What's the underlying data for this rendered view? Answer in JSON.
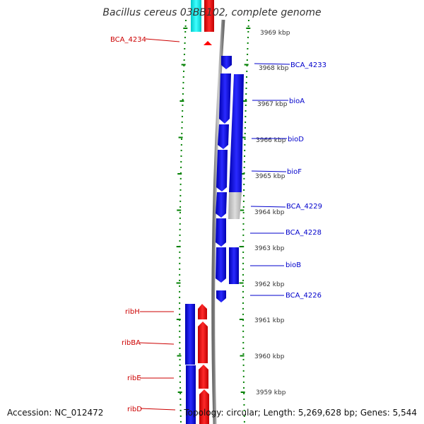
{
  "title": "Bacillus cereus 03BB102, complete genome",
  "footer": {
    "accession": "Accession: NC_012472",
    "summary": "Topology: circular; Length: 5,269,628 bp; Genes: 5,544"
  },
  "scale": {
    "unit": "kbp",
    "ticks": [
      {
        "label": "3969 kbp"
      },
      {
        "label": "3968 kbp"
      },
      {
        "label": "3967 kbp"
      },
      {
        "label": "3966 kbp"
      },
      {
        "label": "3965 kbp"
      },
      {
        "label": "3964 kbp"
      },
      {
        "label": "3963 kbp"
      },
      {
        "label": "3962 kbp"
      },
      {
        "label": "3961 kbp"
      },
      {
        "label": "3960 kbp"
      },
      {
        "label": "3959 kbp"
      }
    ]
  },
  "colors": {
    "forward": "#ff0000",
    "reverse": "#0000ff",
    "cds_forward_outer": "#00e5e5",
    "pseudo": "#c0c0c0",
    "backbone": "#888888",
    "tick_outer": "#008000"
  },
  "labels": {
    "left": [
      {
        "name": "BCA_4234",
        "color": "#cc0000"
      },
      {
        "name": "ribH",
        "color": "#cc0000"
      },
      {
        "name": "ribBA",
        "color": "#cc0000"
      },
      {
        "name": "ribE",
        "color": "#cc0000"
      },
      {
        "name": "ribD",
        "color": "#cc0000"
      }
    ],
    "right": [
      {
        "name": "BCA_4233",
        "color": "#0000cc"
      },
      {
        "name": "bioA",
        "color": "#0000cc"
      },
      {
        "name": "bioD",
        "color": "#0000cc"
      },
      {
        "name": "bioF",
        "color": "#0000cc"
      },
      {
        "name": "BCA_4229",
        "color": "#0000cc"
      },
      {
        "name": "BCA_4228",
        "color": "#0000cc"
      },
      {
        "name": "bioB",
        "color": "#0000cc"
      },
      {
        "name": "BCA_4226",
        "color": "#0000cc"
      }
    ]
  }
}
